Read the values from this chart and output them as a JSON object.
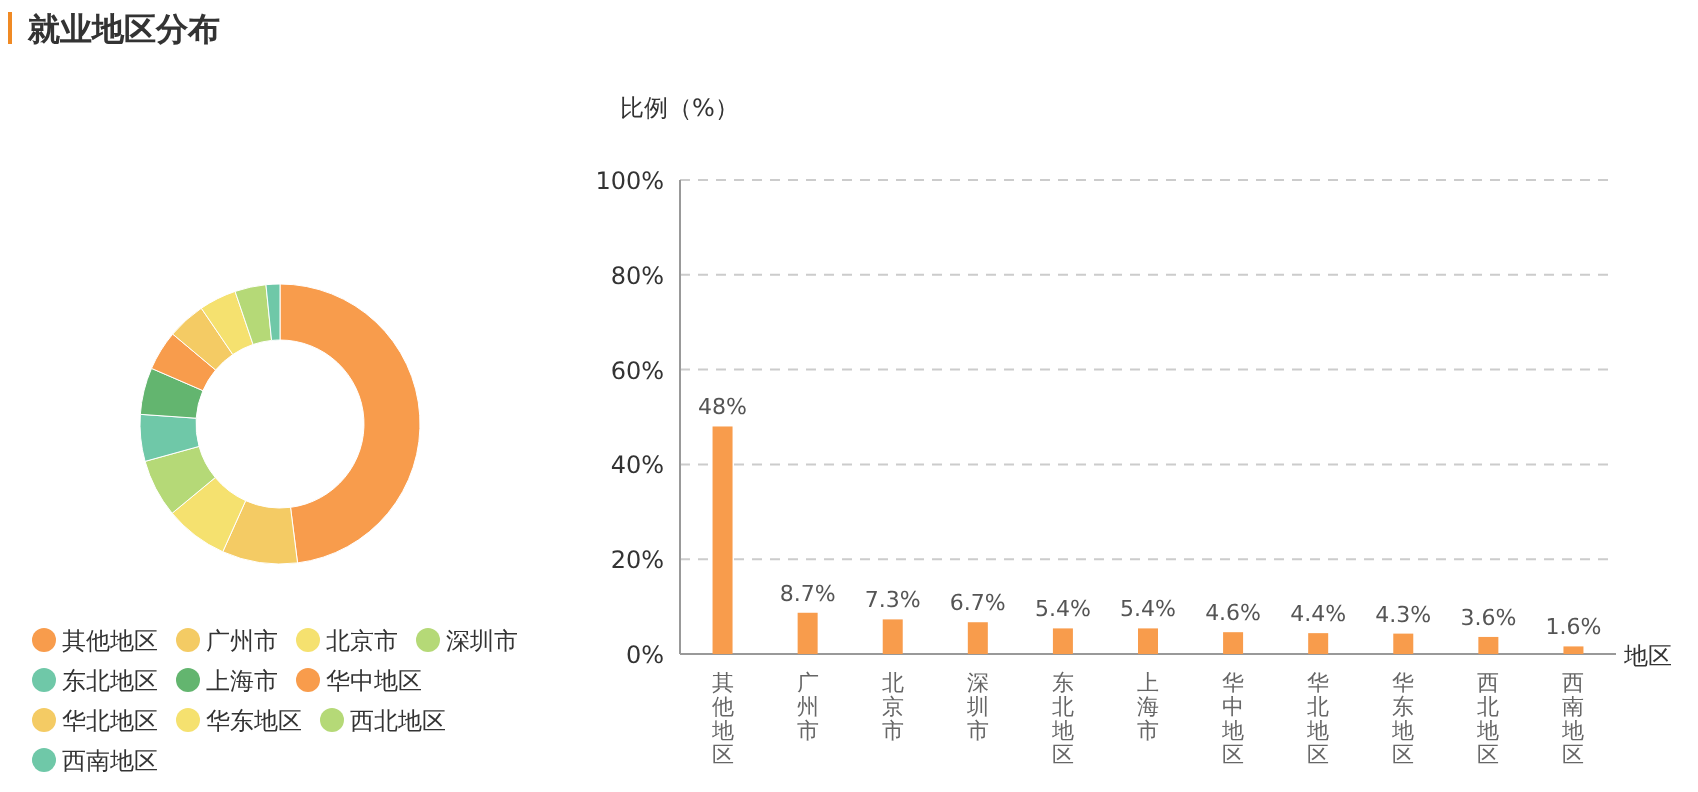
{
  "chart_data": [
    {
      "type": "donut",
      "title": "就业地区分布",
      "categories": [
        "其他地区",
        "广州市",
        "北京市",
        "深圳市",
        "东北地区",
        "上海市",
        "华中地区",
        "华北地区",
        "华东地区",
        "西北地区",
        "西南地区"
      ],
      "values": [
        48,
        8.7,
        7.3,
        6.7,
        5.4,
        5.4,
        4.6,
        4.4,
        4.3,
        3.6,
        1.6
      ],
      "colors": [
        "#f89c4c",
        "#f4cb64",
        "#f5e16f",
        "#b5d977",
        "#6fc8a8",
        "#63b56f",
        "#f89c4c",
        "#f4cb64",
        "#f5e16f",
        "#b5d977",
        "#6fc8a8"
      ],
      "legend": "bottom"
    },
    {
      "type": "bar",
      "categories": [
        "其他地区",
        "广州市",
        "北京市",
        "深圳市",
        "东北地区",
        "上海市",
        "华中地区",
        "华北地区",
        "华东地区",
        "西北地区",
        "西南地区"
      ],
      "values": [
        48,
        8.7,
        7.3,
        6.7,
        5.4,
        5.4,
        4.6,
        4.4,
        4.3,
        3.6,
        1.6
      ],
      "color": "#f89c4c",
      "xlabel": "地区",
      "ylabel": "比例（%）",
      "ylim": [
        0,
        100
      ],
      "yticks": [
        {
          "value": 0,
          "label": "0%"
        },
        {
          "value": 20,
          "label": "20%"
        },
        {
          "value": 40,
          "label": "40%"
        },
        {
          "value": 60,
          "label": "60%"
        },
        {
          "value": 80,
          "label": "80%"
        },
        {
          "value": 100,
          "label": "100%"
        }
      ],
      "grid": "y",
      "value_labels": [
        "48%",
        "8.7%",
        "7.3%",
        "6.7%",
        "5.4%",
        "5.4%",
        "4.6%",
        "4.4%",
        "4.3%",
        "3.6%",
        "1.6%"
      ]
    }
  ]
}
